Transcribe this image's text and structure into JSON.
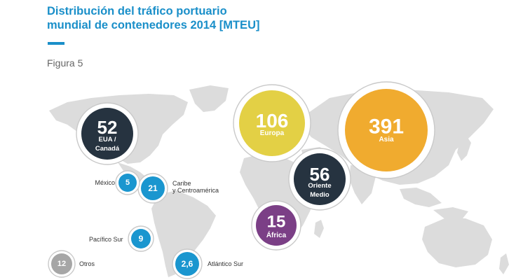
{
  "header": {
    "title_line1": "Distribución del tráfico portuario",
    "title_line2": "mundial de contenedores 2014 [MTEU]",
    "figure_label": "Figura 5"
  },
  "colors": {
    "title": "#1a8fc9",
    "navy": "#263340",
    "yellow": "#e3d045",
    "orange": "#f0ab2f",
    "purple": "#7b3f86",
    "blue": "#1a96cf",
    "gray": "#a6a6a6",
    "land": "#dcdcdc"
  },
  "chart_data": {
    "type": "bubble",
    "title": "Distribución del tráfico portuario mundial de contenedores 2014 [MTEU]",
    "unit": "MTEU",
    "regions": [
      {
        "name": "Asia",
        "value": 391,
        "value_label": "391",
        "lines": [
          "Asia"
        ],
        "color": "orange"
      },
      {
        "name": "Europa",
        "value": 106,
        "value_label": "106",
        "lines": [
          "Europa"
        ],
        "color": "yellow"
      },
      {
        "name": "Oriente Medio",
        "value": 56,
        "value_label": "56",
        "lines": [
          "Oriente",
          "Medio"
        ],
        "color": "navy"
      },
      {
        "name": "EUA / Canadá",
        "value": 52,
        "value_label": "52",
        "lines": [
          "EUA /",
          "Canadá"
        ],
        "color": "navy"
      },
      {
        "name": "Caribe y Centroamérica",
        "value": 21,
        "value_label": "21",
        "outside_lines": [
          "Caribe",
          "y Centroamérica"
        ],
        "color": "blue"
      },
      {
        "name": "África",
        "value": 15,
        "value_label": "15",
        "lines": [
          "África"
        ],
        "color": "purple"
      },
      {
        "name": "Otros",
        "value": 12,
        "value_label": "12",
        "outside_lines": [
          "Otros"
        ],
        "color": "gray"
      },
      {
        "name": "Pacífico Sur",
        "value": 9,
        "value_label": "9",
        "outside_lines": [
          "Pacífico Sur"
        ],
        "color": "blue"
      },
      {
        "name": "México",
        "value": 5,
        "value_label": "5",
        "outside_lines": [
          "México"
        ],
        "color": "blue"
      },
      {
        "name": "Atlántico Sur",
        "value": 2.6,
        "value_label": "2,6",
        "outside_lines": [
          "Atlántico Sur"
        ],
        "color": "blue"
      }
    ]
  }
}
